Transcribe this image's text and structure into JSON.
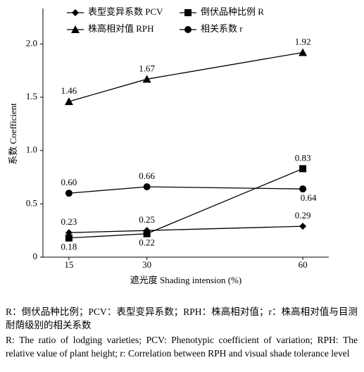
{
  "chart_data": {
    "type": "line",
    "x": [
      15,
      30,
      60
    ],
    "xlim": [
      10,
      65
    ],
    "xticks": [
      15,
      30,
      60
    ],
    "ylim": [
      0,
      2.3
    ],
    "yticks": [
      0,
      0.5,
      {
        "value": 1,
        "label": "1.0"
      },
      1.5,
      {
        "value": 2,
        "label": "2.0"
      }
    ],
    "xlabel": "遮光度 Shading intension (%)",
    "ylabel": "系数 Coefficient",
    "series": [
      {
        "name": "表型变异系数 PCV",
        "marker": "diamond",
        "color": "#000000",
        "values": [
          0.23,
          0.25,
          0.29
        ]
      },
      {
        "name": "倒伏品种比例 R",
        "marker": "square",
        "color": "#000000",
        "values": [
          0.18,
          0.22,
          0.83
        ]
      },
      {
        "name": "株高相对值 RPH",
        "marker": "triangle",
        "color": "#000000",
        "values": [
          1.46,
          1.67,
          1.92
        ]
      },
      {
        "name": "相关系数 r",
        "marker": "circle",
        "color": "#000000",
        "values": [
          0.6,
          0.66,
          0.64
        ],
        "value_labels": [
          "0.60",
          "0.66",
          "0.64"
        ]
      }
    ]
  },
  "caption": {
    "zh": "R：倒伏品种比例；PCV：表型变异系数；RPH：株高相对值；r：株高相对值与目测耐荫级别的相关系数",
    "en": "R: The ratio of lodging varieties; PCV: Phenotypic coefficient of variation; RPH: The relative value of plant height; r: Correlation between RPH and visual shade tolerance level"
  }
}
